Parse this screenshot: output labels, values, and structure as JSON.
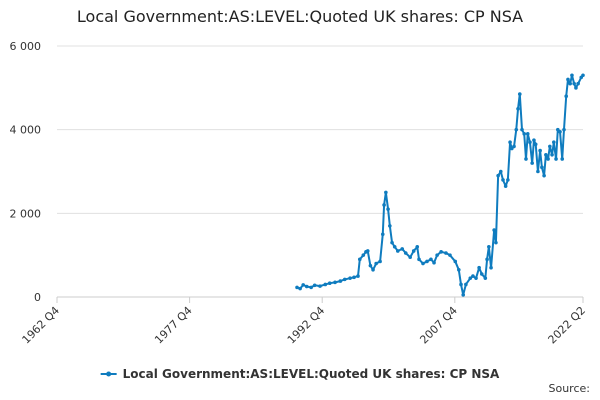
{
  "chart_data": {
    "type": "line",
    "title": "Local Government:AS:LEVEL:Quoted UK shares: CP NSA",
    "source": "Source:",
    "grid": true,
    "legend": "bottom",
    "xlim": [
      1962.75,
      2022.25
    ],
    "xticks": [
      {
        "value": 1962.75,
        "label": "1962 Q4"
      },
      {
        "value": 1977.75,
        "label": "1977 Q4"
      },
      {
        "value": 1992.75,
        "label": "1992 Q4"
      },
      {
        "value": 2007.75,
        "label": "2007 Q4"
      },
      {
        "value": 2022.25,
        "label": "2022 Q2"
      }
    ],
    "ylim": [
      0,
      6000
    ],
    "yticks": [
      {
        "value": 0,
        "label": "0"
      },
      {
        "value": 2000,
        "label": "2 000"
      },
      {
        "value": 4000,
        "label": "4 000"
      },
      {
        "value": 6000,
        "label": "6 000"
      }
    ],
    "x": [
      1989.9,
      1990.25,
      1990.6,
      1991.0,
      1991.5,
      1991.9,
      1992.5,
      1993.1,
      1993.6,
      1994.2,
      1994.8,
      1995.3,
      1995.9,
      1996.35,
      1996.8,
      1997.0,
      1997.4,
      1997.7,
      1997.9,
      1998.2,
      1998.5,
      1998.85,
      1999.3,
      1999.6,
      1999.75,
      1999.95,
      2000.2,
      2000.4,
      2000.65,
      2000.95,
      2001.3,
      2001.8,
      2002.2,
      2002.7,
      2003.1,
      2003.5,
      2003.7,
      2004.15,
      2004.6,
      2005.05,
      2005.4,
      2005.75,
      2006.2,
      2006.75,
      2007.2,
      2007.8,
      2008.2,
      2008.45,
      2008.7,
      2009.0,
      2009.5,
      2009.8,
      2010.15,
      2010.5,
      2010.8,
      2011.2,
      2011.4,
      2011.6,
      2011.85,
      2012.2,
      2012.4,
      2012.65,
      2012.95,
      2013.2,
      2013.5,
      2013.75,
      2014.0,
      2014.2,
      2014.45,
      2014.7,
      2014.9,
      2015.1,
      2015.35,
      2015.6,
      2015.8,
      2016.0,
      2016.25,
      2016.5,
      2016.7,
      2016.9,
      2017.15,
      2017.4,
      2017.6,
      2017.85,
      2018.05,
      2018.3,
      2018.5,
      2018.75,
      2018.95,
      2019.2,
      2019.4,
      2019.65,
      2019.9,
      2020.1,
      2020.35,
      2020.55,
      2020.8,
      2021.0,
      2021.25,
      2021.45,
      2021.7,
      2022.05,
      2022.25
    ],
    "series": [
      {
        "name": "Local Government:AS:LEVEL:Quoted UK shares: CP NSA",
        "color": "#0f7cbf",
        "values": [
          230,
          200,
          290,
          250,
          230,
          280,
          260,
          300,
          330,
          350,
          380,
          420,
          450,
          470,
          500,
          900,
          1000,
          1080,
          1100,
          750,
          650,
          800,
          850,
          1500,
          2200,
          2500,
          2100,
          1700,
          1300,
          1200,
          1100,
          1150,
          1050,
          950,
          1100,
          1200,
          900,
          800,
          850,
          900,
          820,
          1000,
          1080,
          1050,
          1000,
          850,
          650,
          300,
          50,
          300,
          450,
          500,
          450,
          700,
          550,
          450,
          900,
          1200,
          700,
          1600,
          1300,
          2900,
          3000,
          2800,
          2650,
          2800,
          3700,
          3550,
          3600,
          4000,
          4500,
          4850,
          4000,
          3900,
          3300,
          3900,
          3700,
          3200,
          3750,
          3650,
          3000,
          3500,
          3100,
          2900,
          3400,
          3300,
          3600,
          3400,
          3700,
          3300,
          4000,
          3950,
          3300,
          4000,
          4800,
          5200,
          5100,
          5300,
          5100,
          5000,
          5100,
          5250,
          5300
        ]
      }
    ]
  }
}
